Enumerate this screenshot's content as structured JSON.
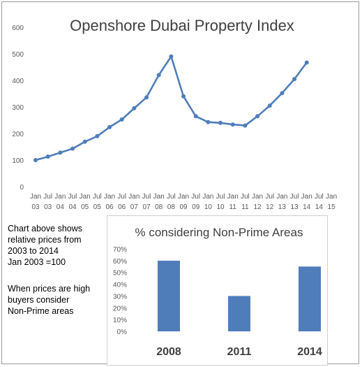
{
  "chart_data": [
    {
      "type": "line",
      "title": "Openshore Dubai Property Index",
      "ylim": [
        0,
        600
      ],
      "yticks": [
        "0",
        "100",
        "200",
        "300",
        "400",
        "500",
        "600"
      ],
      "grid": false,
      "x_top_labels": [
        "Jan",
        "Jul",
        "Jan",
        "Jul",
        "Jan",
        "Jul",
        "Jan",
        "Jul",
        "Jan",
        "Jul",
        "Jan",
        "Jul",
        "Jan",
        "Jul",
        "Jan",
        "Jul",
        "Jan",
        "Jul",
        "Jan",
        "Jul",
        "Jan",
        "Jul",
        "Jan",
        "Jul",
        "Jan"
      ],
      "x_bottom_labels": [
        "03",
        "03",
        "04",
        "04",
        "05",
        "05",
        "06",
        "06",
        "07",
        "07",
        "08",
        "08",
        "09",
        "09",
        "10",
        "10",
        "11",
        "11",
        "12",
        "12",
        "13",
        "13",
        "14",
        "14",
        "15"
      ],
      "color": "#4F7DBA",
      "series": [
        {
          "values": [
            100,
            113,
            128,
            143,
            169,
            190,
            224,
            253,
            295,
            336,
            420,
            490,
            340,
            265,
            243,
            240,
            234,
            230,
            265,
            305,
            352,
            405,
            467
          ]
        }
      ]
    },
    {
      "type": "bar",
      "title": "% considering Non-Prime Areas",
      "categories": [
        "2008",
        "2011",
        "2014"
      ],
      "values": [
        0.6,
        0.3,
        0.55
      ],
      "ylim": [
        0,
        0.7
      ],
      "yticks": [
        "0%",
        "10%",
        "20%",
        "30%",
        "40%",
        "50%",
        "60%",
        "70%"
      ],
      "color": "#4F7DBA"
    }
  ],
  "notes": {
    "line1": "Chart above shows",
    "line2": "relative prices from",
    "line3": "2003 to 2014",
    "line4": "Jan 2003 =100",
    "line5": "When prices are high",
    "line6": "buyers consider",
    "line7": "Non-Prime areas"
  }
}
